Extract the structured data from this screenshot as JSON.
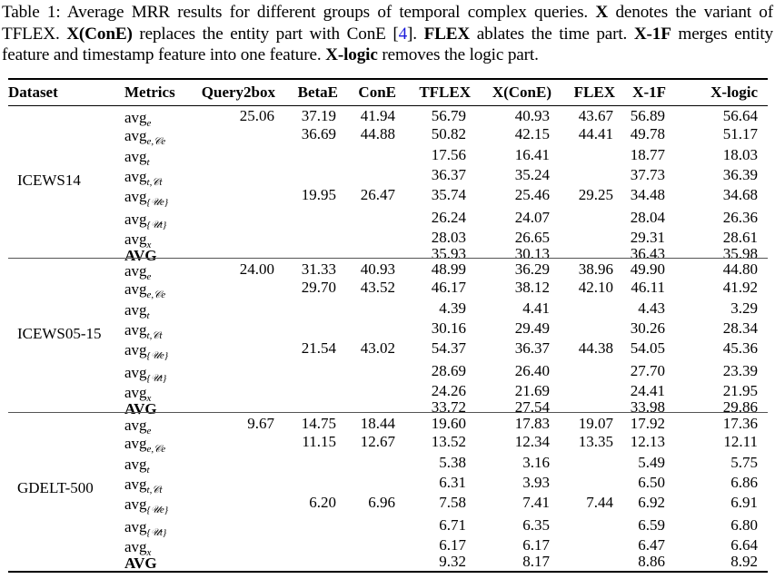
{
  "caption": {
    "prefix": "Table 1: Average MRR results for different groups of temporal complex queries. ",
    "x": "X",
    "t1": " denotes the variant of TFLEX. ",
    "xcone": "X(ConE)",
    "t2": " replaces the entity part with ConE [",
    "ref": "4",
    "t3": "]. ",
    "flex": "FLEX",
    "t4": " ablates the time part. ",
    "x1f": "X-1F",
    "t5": " merges entity feature and timestamp feature into one feature. ",
    "xlogic": "X-logic",
    "t6": " removes the logic part."
  },
  "table": {
    "headers": [
      "Dataset",
      "Metrics",
      "Query2box",
      "BetaE",
      "ConE",
      "TFLEX",
      "X(ConE)",
      "FLEX",
      "X-1F",
      "X-logic"
    ],
    "metrics": [
      {
        "base": "avg",
        "sub": "e"
      },
      {
        "base": "avg",
        "sub": "e,𝒞e"
      },
      {
        "base": "avg",
        "sub": "t"
      },
      {
        "base": "avg",
        "sub": "t,𝒞t"
      },
      {
        "base": "avg",
        "sub": "{𝒰e}"
      },
      {
        "base": "avg",
        "sub": "{𝒰t}"
      },
      {
        "base": "avg",
        "sub": "x"
      },
      {
        "base": "AVG",
        "sub": ""
      }
    ],
    "groups": [
      {
        "dataset": "ICEWS14",
        "rows": [
          [
            "25.06",
            "37.19",
            "41.94",
            "56.79",
            "40.93",
            "43.67",
            "56.89",
            "56.64"
          ],
          [
            "",
            "36.69",
            "44.88",
            "50.82",
            "42.15",
            "44.41",
            "49.78",
            "51.17"
          ],
          [
            "",
            "",
            "",
            "17.56",
            "16.41",
            "",
            "18.77",
            "18.03"
          ],
          [
            "",
            "",
            "",
            "36.37",
            "35.24",
            "",
            "37.73",
            "36.39"
          ],
          [
            "",
            "19.95",
            "26.47",
            "35.74",
            "25.46",
            "29.25",
            "34.48",
            "34.68"
          ],
          [
            "",
            "",
            "",
            "26.24",
            "24.07",
            "",
            "28.04",
            "26.36"
          ],
          [
            "",
            "",
            "",
            "28.03",
            "26.65",
            "",
            "29.31",
            "28.61"
          ],
          [
            "",
            "",
            "",
            "35.93",
            "30.13",
            "",
            "36.43",
            "35.98"
          ]
        ]
      },
      {
        "dataset": "ICEWS05-15",
        "rows": [
          [
            "24.00",
            "31.33",
            "40.93",
            "48.99",
            "36.29",
            "38.96",
            "49.90",
            "44.80"
          ],
          [
            "",
            "29.70",
            "43.52",
            "46.17",
            "38.12",
            "42.10",
            "46.11",
            "41.92"
          ],
          [
            "",
            "",
            "",
            "4.39",
            "4.41",
            "",
            "4.43",
            "3.29"
          ],
          [
            "",
            "",
            "",
            "30.16",
            "29.49",
            "",
            "30.26",
            "28.34"
          ],
          [
            "",
            "21.54",
            "43.02",
            "54.37",
            "36.37",
            "44.38",
            "54.05",
            "45.36"
          ],
          [
            "",
            "",
            "",
            "28.69",
            "26.40",
            "",
            "27.70",
            "23.39"
          ],
          [
            "",
            "",
            "",
            "24.26",
            "21.69",
            "",
            "24.41",
            "21.95"
          ],
          [
            "",
            "",
            "",
            "33.72",
            "27.54",
            "",
            "33.98",
            "29.86"
          ]
        ]
      },
      {
        "dataset": "GDELT-500",
        "rows": [
          [
            "9.67",
            "14.75",
            "18.44",
            "19.60",
            "17.83",
            "19.07",
            "17.92",
            "17.36"
          ],
          [
            "",
            "11.15",
            "12.67",
            "13.52",
            "12.34",
            "13.35",
            "12.13",
            "12.11"
          ],
          [
            "",
            "",
            "",
            "5.38",
            "3.16",
            "",
            "5.49",
            "5.75"
          ],
          [
            "",
            "",
            "",
            "6.31",
            "3.93",
            "",
            "6.50",
            "6.86"
          ],
          [
            "",
            "6.20",
            "6.96",
            "7.58",
            "7.41",
            "7.44",
            "6.92",
            "6.91"
          ],
          [
            "",
            "",
            "",
            "6.71",
            "6.35",
            "",
            "6.59",
            "6.80"
          ],
          [
            "",
            "",
            "",
            "6.17",
            "6.17",
            "",
            "6.47",
            "6.64"
          ],
          [
            "",
            "",
            "",
            "9.32",
            "8.17",
            "",
            "8.86",
            "8.92"
          ]
        ]
      }
    ]
  }
}
